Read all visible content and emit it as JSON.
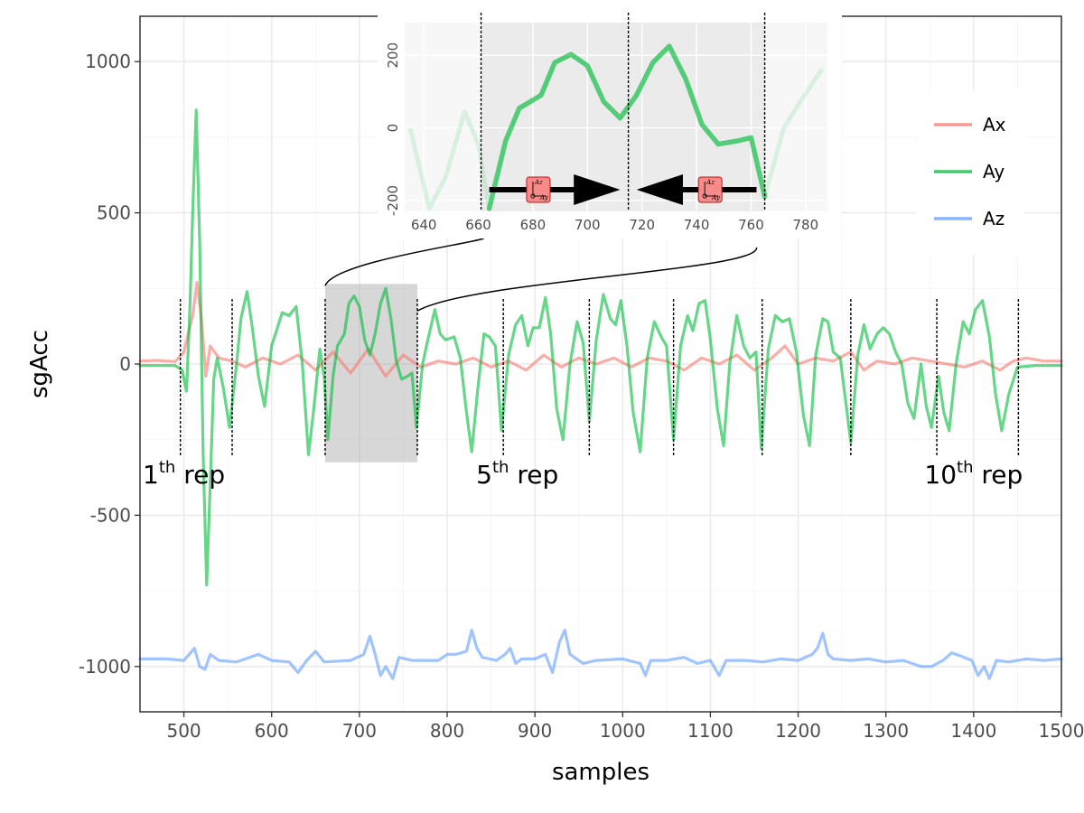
{
  "chart_data": {
    "type": "line",
    "xlabel": "samples",
    "ylabel": "sgAcc",
    "xlim": [
      450,
      1500
    ],
    "ylim": [
      -1150,
      1150
    ],
    "x_ticks": [
      500,
      600,
      700,
      800,
      900,
      1000,
      1100,
      1200,
      1300,
      1400,
      1500
    ],
    "y_ticks": [
      -1000,
      -500,
      0,
      500,
      1000
    ],
    "grid": true,
    "legend_position": "top-right",
    "series": [
      {
        "name": "Ax",
        "color": "#f8766d",
        "points": [
          [
            450,
            10
          ],
          [
            470,
            12
          ],
          [
            490,
            8
          ],
          [
            500,
            40
          ],
          [
            505,
            100
          ],
          [
            510,
            160
          ],
          [
            515,
            270
          ],
          [
            520,
            150
          ],
          [
            525,
            -40
          ],
          [
            530,
            60
          ],
          [
            540,
            20
          ],
          [
            555,
            10
          ],
          [
            570,
            -10
          ],
          [
            590,
            20
          ],
          [
            610,
            0
          ],
          [
            630,
            30
          ],
          [
            650,
            -20
          ],
          [
            670,
            40
          ],
          [
            690,
            -30
          ],
          [
            710,
            50
          ],
          [
            730,
            -40
          ],
          [
            750,
            30
          ],
          [
            770,
            -10
          ],
          [
            790,
            10
          ],
          [
            810,
            0
          ],
          [
            830,
            20
          ],
          [
            850,
            -10
          ],
          [
            870,
            10
          ],
          [
            890,
            -20
          ],
          [
            910,
            30
          ],
          [
            930,
            -10
          ],
          [
            950,
            20
          ],
          [
            970,
            0
          ],
          [
            990,
            20
          ],
          [
            1010,
            -10
          ],
          [
            1030,
            20
          ],
          [
            1050,
            10
          ],
          [
            1070,
            -20
          ],
          [
            1090,
            20
          ],
          [
            1110,
            0
          ],
          [
            1130,
            30
          ],
          [
            1150,
            -20
          ],
          [
            1170,
            20
          ],
          [
            1185,
            60
          ],
          [
            1200,
            0
          ],
          [
            1220,
            20
          ],
          [
            1240,
            10
          ],
          [
            1260,
            40
          ],
          [
            1275,
            -20
          ],
          [
            1290,
            10
          ],
          [
            1310,
            0
          ],
          [
            1330,
            20
          ],
          [
            1350,
            10
          ],
          [
            1370,
            0
          ],
          [
            1390,
            -10
          ],
          [
            1410,
            10
          ],
          [
            1430,
            -20
          ],
          [
            1445,
            10
          ],
          [
            1460,
            20
          ],
          [
            1480,
            10
          ],
          [
            1500,
            10
          ]
        ]
      },
      {
        "name": "Ay",
        "color": "#00ba38",
        "points": [
          [
            450,
            -5
          ],
          [
            470,
            -5
          ],
          [
            490,
            -5
          ],
          [
            498,
            -20
          ],
          [
            503,
            -90
          ],
          [
            507,
            200
          ],
          [
            510,
            500
          ],
          [
            514,
            840
          ],
          [
            518,
            400
          ],
          [
            522,
            -300
          ],
          [
            526,
            -730
          ],
          [
            530,
            -400
          ],
          [
            534,
            -50
          ],
          [
            538,
            20
          ],
          [
            545,
            -80
          ],
          [
            552,
            -210
          ],
          [
            560,
            0
          ],
          [
            565,
            150
          ],
          [
            572,
            240
          ],
          [
            578,
            120
          ],
          [
            585,
            -40
          ],
          [
            592,
            -140
          ],
          [
            600,
            60
          ],
          [
            612,
            170
          ],
          [
            620,
            160
          ],
          [
            628,
            190
          ],
          [
            635,
            0
          ],
          [
            642,
            -300
          ],
          [
            648,
            -150
          ],
          [
            655,
            50
          ],
          [
            660,
            -50
          ],
          [
            664,
            -250
          ],
          [
            670,
            -40
          ],
          [
            675,
            60
          ],
          [
            683,
            100
          ],
          [
            688,
            200
          ],
          [
            694,
            225
          ],
          [
            700,
            190
          ],
          [
            706,
            80
          ],
          [
            712,
            30
          ],
          [
            718,
            100
          ],
          [
            724,
            200
          ],
          [
            730,
            250
          ],
          [
            736,
            150
          ],
          [
            742,
            10
          ],
          [
            748,
            -50
          ],
          [
            755,
            -40
          ],
          [
            760,
            -30
          ],
          [
            765,
            -210
          ],
          [
            772,
            0
          ],
          [
            778,
            80
          ],
          [
            786,
            180
          ],
          [
            792,
            100
          ],
          [
            798,
            80
          ],
          [
            808,
            90
          ],
          [
            815,
            20
          ],
          [
            822,
            -160
          ],
          [
            828,
            -290
          ],
          [
            835,
            -80
          ],
          [
            842,
            100
          ],
          [
            848,
            90
          ],
          [
            855,
            60
          ],
          [
            862,
            -220
          ],
          [
            870,
            30
          ],
          [
            878,
            130
          ],
          [
            885,
            160
          ],
          [
            892,
            60
          ],
          [
            898,
            120
          ],
          [
            905,
            120
          ],
          [
            912,
            220
          ],
          [
            918,
            100
          ],
          [
            925,
            -150
          ],
          [
            932,
            -250
          ],
          [
            940,
            0
          ],
          [
            948,
            140
          ],
          [
            955,
            70
          ],
          [
            962,
            -190
          ],
          [
            970,
            80
          ],
          [
            978,
            230
          ],
          [
            986,
            150
          ],
          [
            992,
            130
          ],
          [
            998,
            210
          ],
          [
            1005,
            60
          ],
          [
            1012,
            -160
          ],
          [
            1020,
            -290
          ],
          [
            1028,
            20
          ],
          [
            1036,
            140
          ],
          [
            1044,
            90
          ],
          [
            1050,
            60
          ],
          [
            1058,
            -250
          ],
          [
            1066,
            60
          ],
          [
            1074,
            160
          ],
          [
            1080,
            110
          ],
          [
            1087,
            200
          ],
          [
            1094,
            210
          ],
          [
            1100,
            80
          ],
          [
            1108,
            -150
          ],
          [
            1115,
            -270
          ],
          [
            1122,
            0
          ],
          [
            1130,
            160
          ],
          [
            1138,
            60
          ],
          [
            1145,
            20
          ],
          [
            1152,
            40
          ],
          [
            1158,
            -280
          ],
          [
            1166,
            50
          ],
          [
            1174,
            160
          ],
          [
            1182,
            140
          ],
          [
            1190,
            150
          ],
          [
            1198,
            40
          ],
          [
            1206,
            -170
          ],
          [
            1213,
            -270
          ],
          [
            1220,
            30
          ],
          [
            1228,
            150
          ],
          [
            1234,
            140
          ],
          [
            1240,
            40
          ],
          [
            1248,
            20
          ],
          [
            1260,
            -260
          ],
          [
            1268,
            30
          ],
          [
            1275,
            130
          ],
          [
            1282,
            50
          ],
          [
            1290,
            100
          ],
          [
            1297,
            120
          ],
          [
            1304,
            100
          ],
          [
            1311,
            40
          ],
          [
            1318,
            0
          ],
          [
            1325,
            -130
          ],
          [
            1332,
            -180
          ],
          [
            1340,
            0
          ],
          [
            1346,
            -140
          ],
          [
            1352,
            -210
          ],
          [
            1360,
            -40
          ],
          [
            1366,
            -160
          ],
          [
            1372,
            -220
          ],
          [
            1380,
            0
          ],
          [
            1388,
            140
          ],
          [
            1395,
            100
          ],
          [
            1402,
            180
          ],
          [
            1410,
            210
          ],
          [
            1418,
            90
          ],
          [
            1425,
            -100
          ],
          [
            1432,
            -220
          ],
          [
            1440,
            -100
          ],
          [
            1450,
            -10
          ],
          [
            1470,
            -5
          ],
          [
            1500,
            -5
          ]
        ]
      },
      {
        "name": "Az",
        "color": "#619cff",
        "points": [
          [
            450,
            -975
          ],
          [
            480,
            -975
          ],
          [
            500,
            -980
          ],
          [
            506,
            -960
          ],
          [
            512,
            -940
          ],
          [
            518,
            -1000
          ],
          [
            524,
            -1010
          ],
          [
            530,
            -960
          ],
          [
            540,
            -980
          ],
          [
            560,
            -985
          ],
          [
            575,
            -970
          ],
          [
            585,
            -960
          ],
          [
            600,
            -980
          ],
          [
            620,
            -985
          ],
          [
            630,
            -1020
          ],
          [
            640,
            -980
          ],
          [
            650,
            -950
          ],
          [
            660,
            -985
          ],
          [
            690,
            -980
          ],
          [
            705,
            -960
          ],
          [
            712,
            -900
          ],
          [
            718,
            -960
          ],
          [
            724,
            -1030
          ],
          [
            730,
            -1000
          ],
          [
            738,
            -1040
          ],
          [
            745,
            -970
          ],
          [
            760,
            -980
          ],
          [
            790,
            -980
          ],
          [
            800,
            -960
          ],
          [
            810,
            -960
          ],
          [
            822,
            -950
          ],
          [
            828,
            -880
          ],
          [
            834,
            -940
          ],
          [
            840,
            -970
          ],
          [
            856,
            -980
          ],
          [
            866,
            -960
          ],
          [
            872,
            -940
          ],
          [
            878,
            -990
          ],
          [
            885,
            -975
          ],
          [
            900,
            -975
          ],
          [
            912,
            -960
          ],
          [
            920,
            -1020
          ],
          [
            928,
            -920
          ],
          [
            934,
            -880
          ],
          [
            940,
            -960
          ],
          [
            955,
            -990
          ],
          [
            970,
            -980
          ],
          [
            1000,
            -975
          ],
          [
            1020,
            -990
          ],
          [
            1026,
            -1030
          ],
          [
            1032,
            -980
          ],
          [
            1050,
            -980
          ],
          [
            1070,
            -970
          ],
          [
            1085,
            -990
          ],
          [
            1100,
            -980
          ],
          [
            1110,
            -1030
          ],
          [
            1118,
            -980
          ],
          [
            1140,
            -980
          ],
          [
            1160,
            -985
          ],
          [
            1180,
            -975
          ],
          [
            1200,
            -980
          ],
          [
            1216,
            -960
          ],
          [
            1222,
            -940
          ],
          [
            1228,
            -890
          ],
          [
            1234,
            -960
          ],
          [
            1240,
            -975
          ],
          [
            1260,
            -980
          ],
          [
            1280,
            -975
          ],
          [
            1300,
            -985
          ],
          [
            1320,
            -980
          ],
          [
            1340,
            -1000
          ],
          [
            1352,
            -1000
          ],
          [
            1365,
            -980
          ],
          [
            1375,
            -955
          ],
          [
            1385,
            -965
          ],
          [
            1398,
            -980
          ],
          [
            1405,
            -1030
          ],
          [
            1412,
            -1000
          ],
          [
            1418,
            -1040
          ],
          [
            1426,
            -980
          ],
          [
            1440,
            -985
          ],
          [
            1460,
            -975
          ],
          [
            1480,
            -980
          ],
          [
            1500,
            -975
          ]
        ]
      }
    ],
    "rep_boundaries": [
      496,
      555,
      661,
      766,
      864,
      962,
      1058,
      1159,
      1260,
      1358,
      1451
    ],
    "highlight_range": [
      661,
      766
    ],
    "rep_labels": [
      {
        "base": "1",
        "sup": "th",
        "text": " rep",
        "x": 500
      },
      {
        "base": "5",
        "sup": "th",
        "text": " rep",
        "x": 880
      },
      {
        "base": "10",
        "sup": "th",
        "text": " rep",
        "x": 1400
      }
    ],
    "inset": {
      "xlim": [
        633,
        788
      ],
      "ylim": [
        -230,
        290
      ],
      "x_ticks": [
        640,
        660,
        680,
        700,
        720,
        740,
        760,
        780
      ],
      "y_ticks": [
        -200,
        0,
        200
      ],
      "shaded_range": [
        661,
        765
      ],
      "dividers": [
        661,
        715,
        765
      ],
      "axis_letter_top": "Az",
      "axis_letter_side": "Ay"
    }
  }
}
